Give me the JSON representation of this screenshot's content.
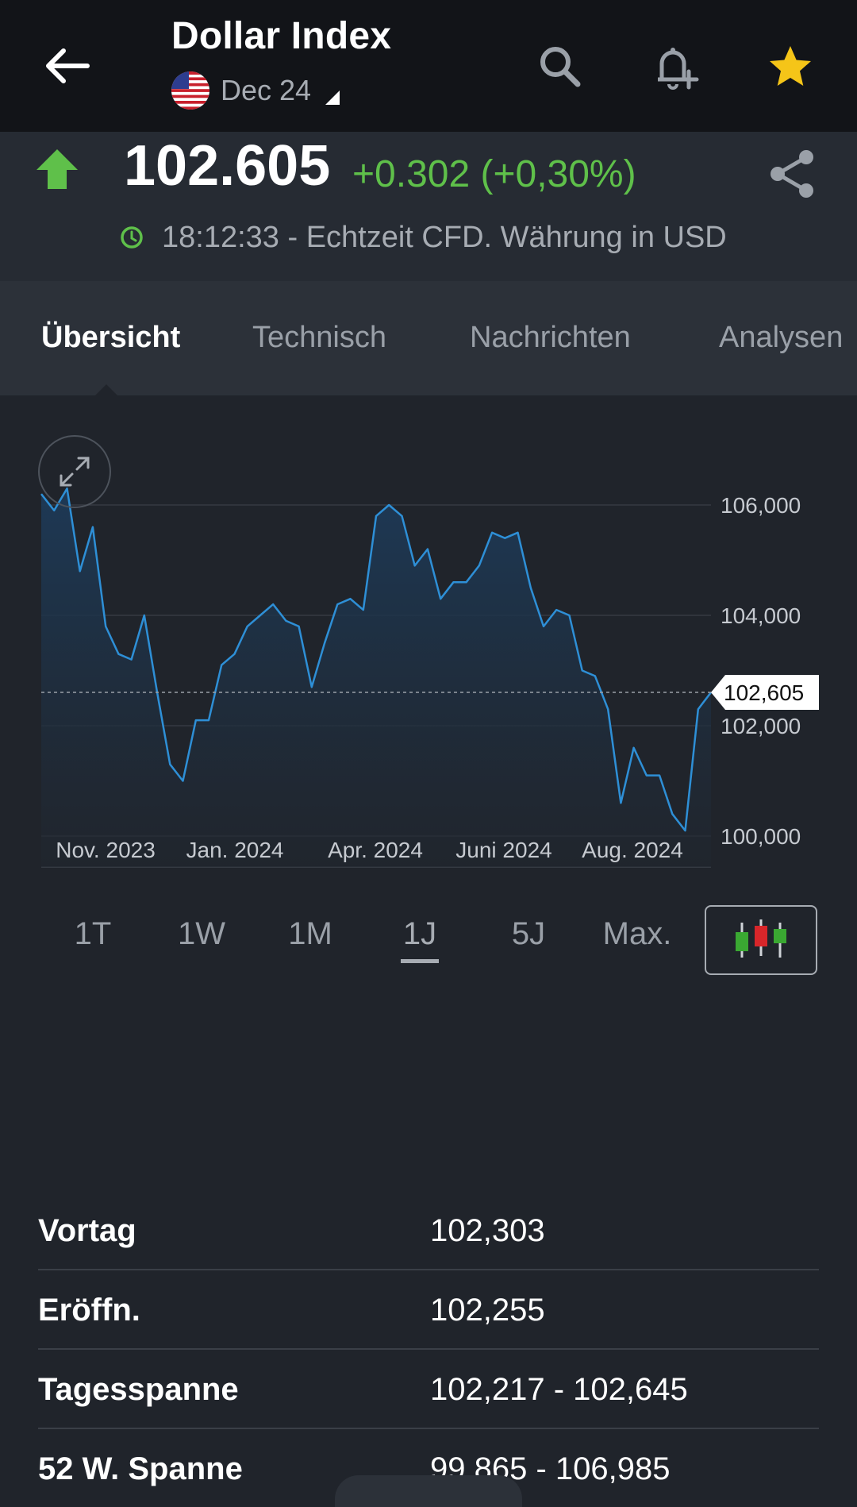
{
  "header": {
    "title": "Dollar Index",
    "contract": "Dec 24",
    "icons": [
      "back-arrow-icon",
      "search-icon",
      "add-alert-icon",
      "star-icon"
    ],
    "star_color": "#f5c518"
  },
  "quote": {
    "price": "102.605",
    "change": "+0.302 (+0,30%)",
    "direction": "up",
    "up_color": "#5fc04a",
    "time_info": "18:12:33 - Echtzeit CFD. Währung in USD"
  },
  "tabs": [
    {
      "label": "Übersicht",
      "active": true
    },
    {
      "label": "Technisch",
      "active": false
    },
    {
      "label": "Nachrichten",
      "active": false
    },
    {
      "label": "Analysen",
      "active": false
    }
  ],
  "chart_data": {
    "type": "area",
    "line_color": "#2e8fd6",
    "x_ticks": [
      "Nov. 2023",
      "Jan. 2024",
      "Apr. 2024",
      "Juni 2024",
      "Aug. 2024"
    ],
    "y_ticks": [
      "106,000",
      "104,000",
      "102,000",
      "100,000"
    ],
    "ylim": [
      100,
      106
    ],
    "current_label": "102,605",
    "current_value": 102.605,
    "values": [
      106.2,
      105.9,
      106.3,
      104.8,
      105.6,
      103.8,
      103.3,
      103.2,
      104.0,
      102.6,
      101.3,
      101.0,
      102.1,
      102.1,
      103.1,
      103.3,
      103.8,
      104.0,
      104.2,
      103.9,
      103.8,
      102.7,
      103.5,
      104.2,
      104.3,
      104.1,
      105.8,
      106.0,
      105.8,
      104.9,
      105.2,
      104.3,
      104.6,
      104.6,
      104.9,
      105.5,
      105.4,
      105.5,
      104.5,
      103.8,
      104.1,
      104.0,
      103.0,
      102.9,
      102.3,
      100.6,
      101.6,
      101.1,
      101.1,
      100.4,
      100.1,
      102.3,
      102.605
    ]
  },
  "time_ranges": [
    {
      "label": "1T",
      "active": false
    },
    {
      "label": "1W",
      "active": false
    },
    {
      "label": "1M",
      "active": false
    },
    {
      "label": "1J",
      "active": true
    },
    {
      "label": "5J",
      "active": false
    },
    {
      "label": "Max.",
      "active": false
    }
  ],
  "stats": [
    {
      "label": "Vortag",
      "value": "102,303"
    },
    {
      "label": "Eröffn.",
      "value": "102,255"
    },
    {
      "label": "Tagesspanne",
      "value": "102,217 - 102,645"
    },
    {
      "label": "52 W. Spanne",
      "value": "99,865 - 106,985"
    }
  ]
}
